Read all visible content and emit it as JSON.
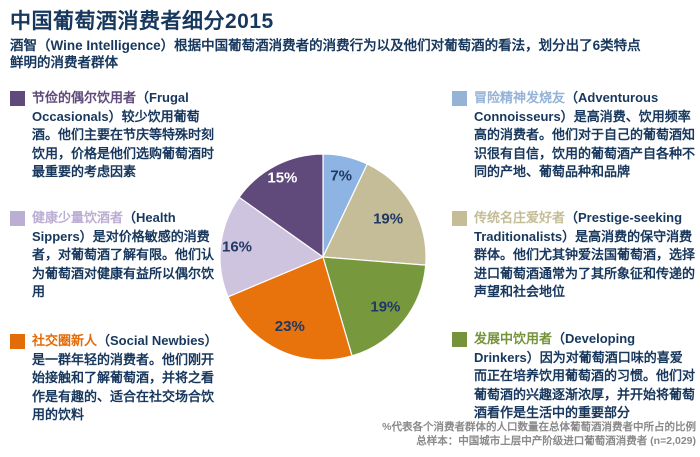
{
  "header": {
    "title": "中国葡萄酒消费者细分2015",
    "subtitle": "酒智（Wine Intelligence）根据中国葡萄酒消费者的消费行为以及他们对葡萄酒的看法，划分出了6类特点鲜明的消费者群体"
  },
  "segments": {
    "left": [
      {
        "id": "frugal-occasionals",
        "name_cn": "节俭的偶尔饮用者",
        "name_en": "（Frugal Occasionals）",
        "description": "较少饮用葡萄酒。他们主要在节庆等特殊时刻饮用，价格是他们选购葡萄酒时最重要的考虑因素",
        "color": "#604A7B"
      },
      {
        "id": "health-sippers",
        "name_cn": "健康少量饮酒者",
        "name_en": "（Health Sippers）",
        "description": "是对价格敏感的消费者，对葡萄酒了解有限。他们认为葡萄酒对健康有益所以偶尔饮用",
        "color": "#BCAED3"
      },
      {
        "id": "social-newbies",
        "name_cn": "社交圈新人",
        "name_en": "（Social Newbies）",
        "description": "是一群年轻的消费者。他们刚开始接触和了解葡萄酒，并将之看作是有趣的、适合在社交场合饮用的饮料",
        "color": "#E36C0A"
      }
    ],
    "right": [
      {
        "id": "adventurous-connoisseurs",
        "name_cn": "冒险精神发烧友",
        "name_en": "（Adventurous Connoisseurs）",
        "description": "是高消费、饮用频率高的消费者。他们对于自己的葡萄酒知识很有自信，饮用的葡萄酒产自各种不同的产地、葡萄品种和品牌",
        "color": "#95B3D7"
      },
      {
        "id": "prestige-seeking-traditionalists",
        "name_cn": "传统名庄爱好者",
        "name_en": "（Prestige-seeking Traditionalists）",
        "description": "是高消费的保守消费群体。他们尤其钟爱法国葡萄酒，选择进口葡萄酒通常为了其所象征和传递的声望和社会地位",
        "color": "#C4BD97"
      },
      {
        "id": "developing-drinkers",
        "name_cn": "发展中饮用者",
        "name_en": "（Developing Drinkers）",
        "description": "因为对葡萄酒口味的喜爱而正在培养饮用葡萄酒的习惯。他们对葡萄酒的兴趣逐渐浓厚，并开始将葡萄酒看作是生活中的重要部分",
        "color": "#76933C"
      }
    ]
  },
  "chart_data": {
    "type": "pie",
    "title": "中国葡萄酒消费者细分2015",
    "categories": [
      "冒险精神发烧友 (Adventurous Connoisseurs)",
      "传统名庄爱好者 (Prestige-seeking Traditionalists)",
      "发展中饮用者 (Developing Drinkers)",
      "社交圈新人 (Social Newbies)",
      "健康少量饮酒者 (Health Sippers)",
      "节俭的偶尔饮用者 (Frugal Occasionals)"
    ],
    "ids": [
      "adventurous-connoisseurs",
      "prestige-seeking-traditionalists",
      "developing-drinkers",
      "social-newbies",
      "health-sippers",
      "frugal-occasionals"
    ],
    "values": [
      7,
      19,
      19,
      23,
      16,
      15
    ],
    "labels": [
      "7%",
      "19%",
      "19%",
      "23%",
      "16%",
      "15%"
    ],
    "colors": [
      "#8DB4E2",
      "#C4BD97",
      "#77983D",
      "#E8720C",
      "#CFC4E0",
      "#604A7B"
    ],
    "label_colors": [
      "#1F3864",
      "#1F3864",
      "#1F3864",
      "#1F3864",
      "#1F3864",
      "#FFFFFF"
    ],
    "label_radius": [
      0.8,
      0.73,
      0.78,
      0.75,
      0.84,
      0.86
    ],
    "start_angle_deg": 0,
    "direction": "clockwise",
    "legend_position": "none",
    "grid": false
  },
  "footer": {
    "line1": "%代表各个消费者群体的人口数量在总体葡萄酒消费者中所占的比例",
    "line2": "总样本：中国城市上层中产阶级进口葡萄酒消费者 (n=2,029)"
  }
}
